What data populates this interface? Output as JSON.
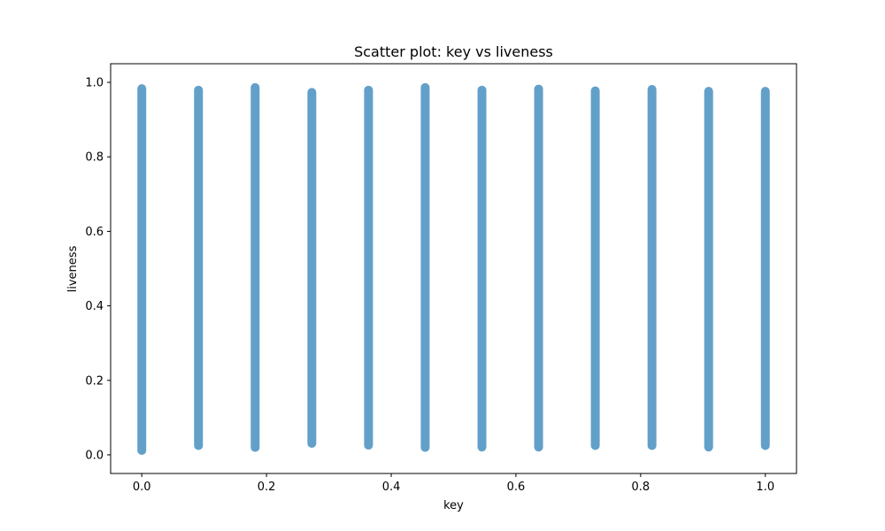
{
  "chart_data": {
    "type": "scatter",
    "title": "Scatter plot: key vs liveness",
    "xlabel": "key",
    "ylabel": "liveness",
    "xlim": [
      -0.05,
      1.05
    ],
    "ylim": [
      -0.05,
      1.05
    ],
    "xticks": [
      0.0,
      0.2,
      0.4,
      0.6,
      0.8,
      1.0
    ],
    "yticks": [
      0.0,
      0.2,
      0.4,
      0.6,
      0.8,
      1.0
    ],
    "xtick_labels": [
      "0.0",
      "0.2",
      "0.4",
      "0.6",
      "0.8",
      "1.0"
    ],
    "ytick_labels": [
      "0.0",
      "0.2",
      "0.4",
      "0.6",
      "0.8",
      "1.0"
    ],
    "grid": false,
    "legend": "none",
    "marker_color": "#1f77b4",
    "marker_alpha": 0.7,
    "series": [
      {
        "points": [
          {
            "x": 0.0,
            "y_range": [
              0.0,
              0.995
            ]
          },
          {
            "x": 0.0909,
            "y_range": [
              0.013,
              0.991
            ]
          },
          {
            "x": 0.1818,
            "y_range": [
              0.008,
              0.998
            ]
          },
          {
            "x": 0.2727,
            "y_range": [
              0.019,
              0.985
            ]
          },
          {
            "x": 0.3636,
            "y_range": [
              0.014,
              0.991
            ]
          },
          {
            "x": 0.4545,
            "y_range": [
              0.008,
              0.998
            ]
          },
          {
            "x": 0.5455,
            "y_range": [
              0.009,
              0.991
            ]
          },
          {
            "x": 0.6364,
            "y_range": [
              0.009,
              0.994
            ]
          },
          {
            "x": 0.7273,
            "y_range": [
              0.013,
              0.989
            ]
          },
          {
            "x": 0.8182,
            "y_range": [
              0.013,
              0.993
            ]
          },
          {
            "x": 0.9091,
            "y_range": [
              0.009,
              0.988
            ]
          },
          {
            "x": 1.0,
            "y_range": [
              0.013,
              0.988
            ]
          }
        ]
      }
    ]
  }
}
